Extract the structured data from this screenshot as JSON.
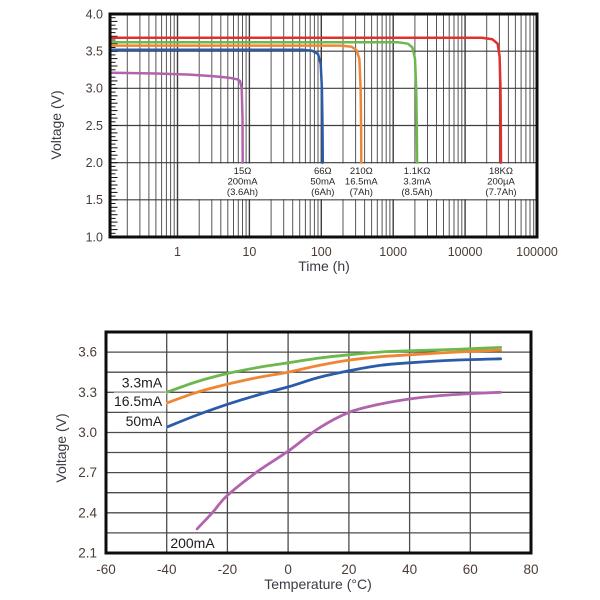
{
  "style": {
    "background": "#ffffff",
    "frame_color": "#0d0d0d",
    "grid_minor_color": "#555555",
    "grid_major_color": "#3d3d3d",
    "tick_label_color": "#4b3c36",
    "axis_title_color": "#3a3a44",
    "annotation_color": "#262626",
    "label_bg": "#ffffff"
  },
  "chart_data": [
    {
      "id": "discharge",
      "type": "line",
      "title": "",
      "xlabel": "Time (h)",
      "ylabel": "Voltage (V)",
      "x_scale": "log",
      "xlim": [
        0.115,
        100000
      ],
      "ylim": [
        1.0,
        4.0
      ],
      "x_tick_values": [
        1,
        10,
        100,
        1000,
        10000,
        100000
      ],
      "x_tick_labels": [
        "1",
        "10",
        "100",
        "1000",
        "10000",
        "100000"
      ],
      "y_tick_values": [
        1.0,
        1.5,
        2.0,
        2.5,
        3.0,
        3.5,
        4.0
      ],
      "y_tick_labels": [
        "1.0",
        "1.5",
        "2.0",
        "2.5",
        "3.0",
        "3.5",
        "4.0"
      ],
      "y_minor_tick_step": 0.05,
      "grid": true,
      "legend_position": "none",
      "series": [
        {
          "name": "200mA load (15Ω)",
          "color": "#b263ae",
          "points": [
            [
              0.115,
              3.21
            ],
            [
              0.5,
              3.2
            ],
            [
              1.5,
              3.185
            ],
            [
              3,
              3.165
            ],
            [
              4.5,
              3.15
            ],
            [
              5.8,
              3.135
            ],
            [
              6.8,
              3.12
            ],
            [
              7.4,
              3.1
            ],
            [
              7.8,
              3.0
            ],
            [
              8.0,
              2.6
            ],
            [
              8.05,
              2.0
            ]
          ]
        },
        {
          "name": "50mA load (66Ω)",
          "color": "#2a5caa",
          "points": [
            [
              0.115,
              3.52
            ],
            [
              55,
              3.52
            ],
            [
              75,
              3.505
            ],
            [
              90,
              3.46
            ],
            [
              98,
              3.33
            ],
            [
              102,
              3.0
            ],
            [
              104,
              2.5
            ],
            [
              105,
              2.0
            ]
          ]
        },
        {
          "name": "16.5mA load (210Ω)",
          "color": "#f08634",
          "points": [
            [
              0.115,
              3.575
            ],
            [
              190,
              3.575
            ],
            [
              265,
              3.56
            ],
            [
              310,
              3.51
            ],
            [
              338,
              3.4
            ],
            [
              352,
              3.0
            ],
            [
              357,
              2.5
            ],
            [
              360,
              2.0
            ]
          ]
        },
        {
          "name": "3.3mA load (1.1KΩ)",
          "color": "#6db84c",
          "points": [
            [
              0.115,
              3.62
            ],
            [
              1150,
              3.62
            ],
            [
              1600,
              3.6
            ],
            [
              1850,
              3.55
            ],
            [
              2010,
              3.4
            ],
            [
              2090,
              3.0
            ],
            [
              2130,
              2.5
            ],
            [
              2150,
              2.0
            ]
          ]
        },
        {
          "name": "200µA load (18KΩ)",
          "color": "#e0322d",
          "points": [
            [
              0.115,
              3.68
            ],
            [
              17000,
              3.68
            ],
            [
              24000,
              3.66
            ],
            [
              28300,
              3.6
            ],
            [
              30200,
              3.43
            ],
            [
              31100,
              3.0
            ],
            [
              31400,
              2.5
            ],
            [
              31600,
              2.0
            ]
          ]
        }
      ],
      "annotations": [
        {
          "x": 8.0,
          "lines": [
            "15Ω",
            "200mA",
            "(3.6Ah)"
          ]
        },
        {
          "x": 105,
          "lines": [
            "66Ω",
            "50mA",
            "(6Ah)"
          ]
        },
        {
          "x": 360,
          "lines": [
            "210Ω",
            "16.5mA",
            "(7Ah)"
          ]
        },
        {
          "x": 2150,
          "lines": [
            "1.1KΩ",
            "3.3mA",
            "(8.5Ah)"
          ]
        },
        {
          "x": 31600,
          "lines": [
            "18KΩ",
            "200µA",
            "(7.7Ah)"
          ]
        }
      ],
      "annotation_band": {
        "v_top": 2.0,
        "v_bottom": 1.5
      }
    },
    {
      "id": "temperature",
      "type": "line",
      "title": "",
      "xlabel": "Temperature (°C)",
      "ylabel": "Voltage (V)",
      "x_scale": "linear",
      "xlim": [
        -60,
        80
      ],
      "ylim": [
        2.1,
        3.75
      ],
      "x_tick_values": [
        -60,
        -40,
        -20,
        0,
        20,
        40,
        60,
        80
      ],
      "x_tick_labels": [
        "-60",
        "-40",
        "-20",
        "0",
        "20",
        "40",
        "60",
        "80"
      ],
      "y_tick_values": [
        2.1,
        2.4,
        2.7,
        3.0,
        3.3,
        3.6
      ],
      "y_tick_labels": [
        "2.1",
        "2.4",
        "2.7",
        "3.0",
        "3.3",
        "3.6"
      ],
      "y_grid_step": 0.15,
      "x_grid_step": 20,
      "grid": true,
      "legend_position": "inline-labels",
      "series": [
        {
          "name": "200mA",
          "color": "#b263ae",
          "points": [
            [
              -30,
              2.28
            ],
            [
              -25,
              2.4
            ],
            [
              -20,
              2.53
            ],
            [
              -10,
              2.71
            ],
            [
              0,
              2.86
            ],
            [
              10,
              3.03
            ],
            [
              20,
              3.15
            ],
            [
              30,
              3.21
            ],
            [
              40,
              3.25
            ],
            [
              50,
              3.275
            ],
            [
              60,
              3.29
            ],
            [
              70,
              3.3
            ]
          ]
        },
        {
          "name": "50mA",
          "color": "#2a5caa",
          "points": [
            [
              -40,
              3.04
            ],
            [
              -30,
              3.13
            ],
            [
              -20,
              3.21
            ],
            [
              -10,
              3.28
            ],
            [
              0,
              3.34
            ],
            [
              10,
              3.41
            ],
            [
              20,
              3.46
            ],
            [
              30,
              3.5
            ],
            [
              40,
              3.52
            ],
            [
              55,
              3.54
            ],
            [
              70,
              3.55
            ]
          ]
        },
        {
          "name": "16.5mA",
          "color": "#f08634",
          "points": [
            [
              -40,
              3.22
            ],
            [
              -30,
              3.3
            ],
            [
              -20,
              3.36
            ],
            [
              -10,
              3.41
            ],
            [
              0,
              3.45
            ],
            [
              10,
              3.5
            ],
            [
              20,
              3.54
            ],
            [
              30,
              3.565
            ],
            [
              40,
              3.58
            ],
            [
              55,
              3.6
            ],
            [
              70,
              3.615
            ]
          ]
        },
        {
          "name": "3.3mA",
          "color": "#6db84c",
          "points": [
            [
              -40,
              3.3
            ],
            [
              -30,
              3.38
            ],
            [
              -20,
              3.44
            ],
            [
              -10,
              3.485
            ],
            [
              0,
              3.52
            ],
            [
              10,
              3.555
            ],
            [
              20,
              3.58
            ],
            [
              30,
              3.6
            ],
            [
              40,
              3.61
            ],
            [
              55,
              3.62
            ],
            [
              70,
              3.635
            ]
          ]
        }
      ],
      "labels": [
        {
          "text": "3.3mA",
          "x": -41.5,
          "v": 3.37,
          "anchor": "end"
        },
        {
          "text": "16.5mA",
          "x": -41.5,
          "v": 3.235,
          "anchor": "end"
        },
        {
          "text": "50mA",
          "x": -41.5,
          "v": 3.085,
          "anchor": "end"
        },
        {
          "text": "200mA",
          "x": -31.5,
          "v": 2.175,
          "anchor": "middle"
        }
      ]
    }
  ]
}
